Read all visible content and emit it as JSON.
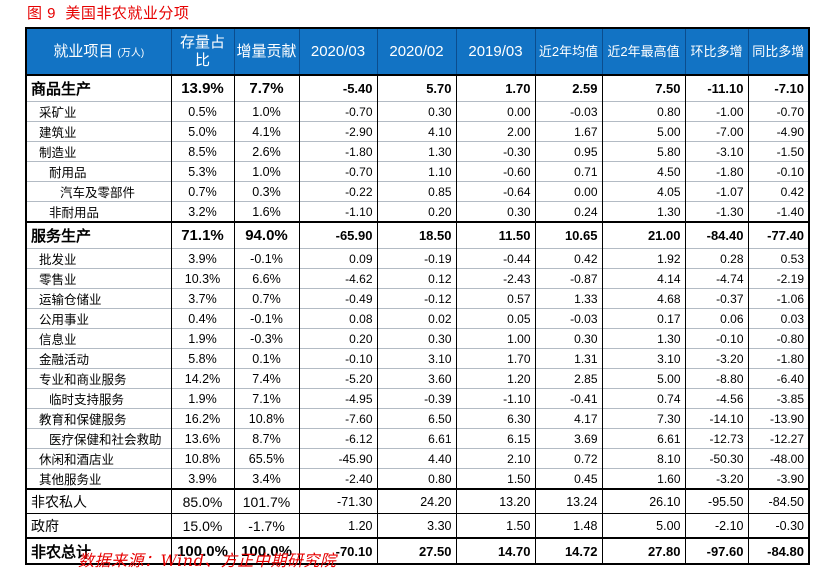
{
  "title": "图 9  美国非农就业分项",
  "source_note": "数据来源：Wind、方正中期研究院",
  "colors": {
    "header_bg": "#1273C4",
    "header_divider": "#0B4D8E",
    "grid_light": "#B3BBC4",
    "grid_dark": "#000000",
    "accent_red": "#E60000",
    "text": "#000000"
  },
  "chart_data": {
    "type": "table",
    "title": "图 9  美国非农就业分项",
    "columns": [
      {
        "label": "就业项目",
        "sub": "(万人)"
      },
      {
        "label": "存量占比"
      },
      {
        "label": "增量贡献"
      },
      {
        "label": "2020/03"
      },
      {
        "label": "2020/02"
      },
      {
        "label": "2019/03"
      },
      {
        "label": "近2年均值"
      },
      {
        "label": "近2年最高值"
      },
      {
        "label": "环比多增"
      },
      {
        "label": "同比多增"
      }
    ],
    "rows": [
      {
        "label": "商品生产",
        "type": "section",
        "indent": 0,
        "values": [
          "13.9%",
          "7.7%",
          "-5.40",
          "5.70",
          "1.70",
          "2.59",
          "7.50",
          "-11.10",
          "-7.10"
        ]
      },
      {
        "label": "采矿业",
        "type": "sub",
        "indent": 1,
        "values": [
          "0.5%",
          "1.0%",
          "-0.70",
          "0.30",
          "0.00",
          "-0.03",
          "0.80",
          "-1.00",
          "-0.70"
        ]
      },
      {
        "label": "建筑业",
        "type": "sub",
        "indent": 1,
        "values": [
          "5.0%",
          "4.1%",
          "-2.90",
          "4.10",
          "2.00",
          "1.67",
          "5.00",
          "-7.00",
          "-4.90"
        ]
      },
      {
        "label": "制造业",
        "type": "sub",
        "indent": 1,
        "values": [
          "8.5%",
          "2.6%",
          "-1.80",
          "1.30",
          "-0.30",
          "0.95",
          "5.80",
          "-3.10",
          "-1.50"
        ]
      },
      {
        "label": "耐用品",
        "type": "sub",
        "indent": 2,
        "values": [
          "5.3%",
          "1.0%",
          "-0.70",
          "1.10",
          "-0.60",
          "0.71",
          "4.50",
          "-1.80",
          "-0.10"
        ]
      },
      {
        "label": "汽车及零部件",
        "type": "sub",
        "indent": 3,
        "values": [
          "0.7%",
          "0.3%",
          "-0.22",
          "0.85",
          "-0.64",
          "0.00",
          "4.05",
          "-1.07",
          "0.42"
        ]
      },
      {
        "label": "非耐用品",
        "type": "sub",
        "indent": 2,
        "values": [
          "3.2%",
          "1.6%",
          "-1.10",
          "0.20",
          "0.30",
          "0.24",
          "1.30",
          "-1.30",
          "-1.40"
        ]
      },
      {
        "label": "服务生产",
        "type": "section",
        "indent": 0,
        "values": [
          "71.1%",
          "94.0%",
          "-65.90",
          "18.50",
          "11.50",
          "10.65",
          "21.00",
          "-84.40",
          "-77.40"
        ]
      },
      {
        "label": "批发业",
        "type": "sub",
        "indent": 1,
        "values": [
          "3.9%",
          "-0.1%",
          "0.09",
          "-0.19",
          "-0.44",
          "0.42",
          "1.92",
          "0.28",
          "0.53"
        ]
      },
      {
        "label": "零售业",
        "type": "sub",
        "indent": 1,
        "values": [
          "10.3%",
          "6.6%",
          "-4.62",
          "0.12",
          "-2.43",
          "-0.87",
          "4.14",
          "-4.74",
          "-2.19"
        ]
      },
      {
        "label": "运输仓储业",
        "type": "sub",
        "indent": 1,
        "values": [
          "3.7%",
          "0.7%",
          "-0.49",
          "-0.12",
          "0.57",
          "1.33",
          "4.68",
          "-0.37",
          "-1.06"
        ]
      },
      {
        "label": "公用事业",
        "type": "sub",
        "indent": 1,
        "values": [
          "0.4%",
          "-0.1%",
          "0.08",
          "0.02",
          "0.05",
          "-0.03",
          "0.17",
          "0.06",
          "0.03"
        ]
      },
      {
        "label": "信息业",
        "type": "sub",
        "indent": 1,
        "values": [
          "1.9%",
          "-0.3%",
          "0.20",
          "0.30",
          "1.00",
          "0.30",
          "1.30",
          "-0.10",
          "-0.80"
        ]
      },
      {
        "label": "金融活动",
        "type": "sub",
        "indent": 1,
        "values": [
          "5.8%",
          "0.1%",
          "-0.10",
          "3.10",
          "1.70",
          "1.31",
          "3.10",
          "-3.20",
          "-1.80"
        ]
      },
      {
        "label": "专业和商业服务",
        "type": "sub",
        "indent": 1,
        "values": [
          "14.2%",
          "7.4%",
          "-5.20",
          "3.60",
          "1.20",
          "2.85",
          "5.00",
          "-8.80",
          "-6.40"
        ]
      },
      {
        "label": "临时支持服务",
        "type": "sub",
        "indent": 2,
        "values": [
          "1.9%",
          "7.1%",
          "-4.95",
          "-0.39",
          "-1.10",
          "-0.41",
          "0.74",
          "-4.56",
          "-3.85"
        ]
      },
      {
        "label": "教育和保健服务",
        "type": "sub",
        "indent": 1,
        "values": [
          "16.2%",
          "10.8%",
          "-7.60",
          "6.50",
          "6.30",
          "4.17",
          "7.30",
          "-14.10",
          "-13.90"
        ]
      },
      {
        "label": "医疗保健和社会救助",
        "type": "sub",
        "indent": 2,
        "values": [
          "13.6%",
          "8.7%",
          "-6.12",
          "6.61",
          "6.15",
          "3.69",
          "6.61",
          "-12.73",
          "-12.27"
        ]
      },
      {
        "label": "休闲和酒店业",
        "type": "sub",
        "indent": 1,
        "values": [
          "10.8%",
          "65.5%",
          "-45.90",
          "4.40",
          "2.10",
          "0.72",
          "8.10",
          "-50.30",
          "-48.00"
        ]
      },
      {
        "label": "其他服务业",
        "type": "sub",
        "indent": 1,
        "values": [
          "3.9%",
          "3.4%",
          "-2.40",
          "0.80",
          "1.50",
          "0.45",
          "1.60",
          "-3.20",
          "-3.90"
        ]
      },
      {
        "label": "非农私人",
        "type": "major",
        "indent": 0,
        "values": [
          "85.0%",
          "101.7%",
          "-71.30",
          "24.20",
          "13.20",
          "13.24",
          "26.10",
          "-95.50",
          "-84.50"
        ]
      },
      {
        "label": "政府",
        "type": "major",
        "indent": 0,
        "values": [
          "15.0%",
          "-1.7%",
          "1.20",
          "3.30",
          "1.50",
          "1.48",
          "5.00",
          "-2.10",
          "-0.30"
        ]
      },
      {
        "label": "非农总计",
        "type": "total",
        "indent": 0,
        "values": [
          "100.0%",
          "100.0%",
          "-70.10",
          "27.50",
          "14.70",
          "14.72",
          "27.80",
          "-97.60",
          "-84.80"
        ]
      }
    ]
  }
}
